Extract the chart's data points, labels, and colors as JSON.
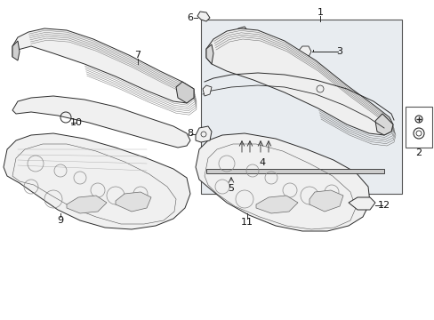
{
  "bg_color": "#ffffff",
  "lc": "#2a2a2a",
  "fc_part": "#f0f0f0",
  "fc_box": "#e8eef4",
  "fc_shade": "#d8d8d8",
  "label_fs": 8,
  "small_fs": 7,
  "lw_main": 0.7,
  "lw_thin": 0.4,
  "fig_w": 4.89,
  "fig_h": 3.6,
  "dpi": 100
}
